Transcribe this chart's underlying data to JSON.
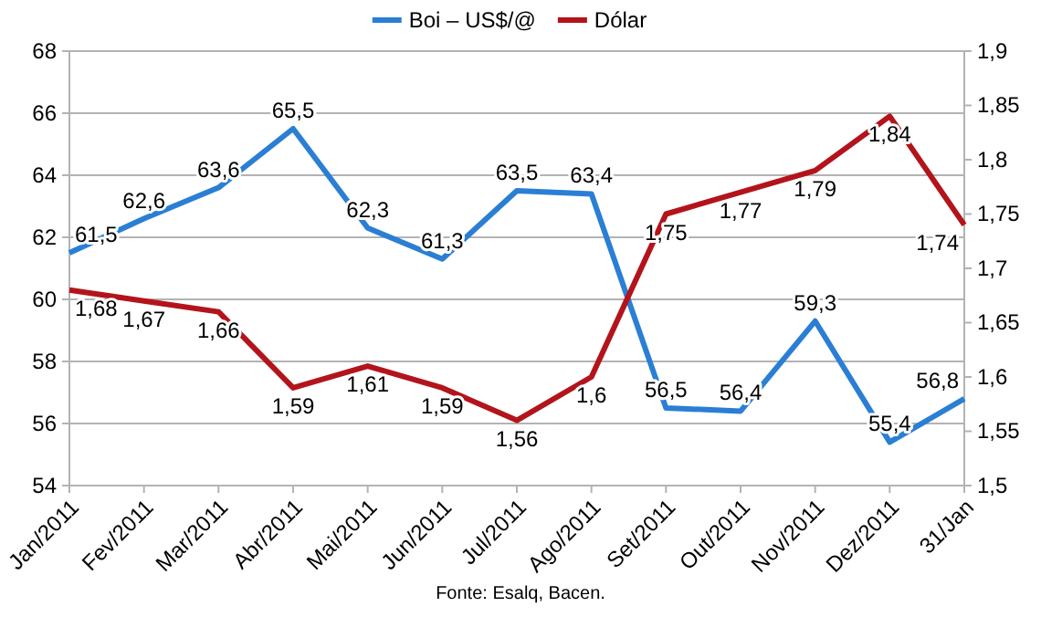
{
  "chart_data": {
    "type": "line",
    "categories": [
      "Jan/2011",
      "Fev/2011",
      "Mar/2011",
      "Abr/2011",
      "Mai/2011",
      "Jun/2011",
      "Jul/2011",
      "Ago/2011",
      "Set/2011",
      "Out/2011",
      "Nov/2011",
      "Dez/2011",
      "31/Jan"
    ],
    "series": [
      {
        "name": "Boi – US$/@",
        "color": "#2a7fd4",
        "values": [
          61.5,
          62.6,
          63.6,
          65.5,
          62.3,
          61.3,
          63.5,
          63.4,
          56.5,
          56.4,
          59.3,
          55.4,
          56.8
        ],
        "value_labels": [
          "61,5",
          "62,6",
          "63,6",
          "65,5",
          "62,3",
          "61,3",
          "63,5",
          "63,4",
          "56,5",
          "56,4",
          "59,3",
          "55,4",
          "56,8"
        ]
      },
      {
        "name": "Dólar",
        "color": "#b3141c",
        "axis": "y2",
        "values": [
          1.68,
          1.67,
          1.66,
          1.59,
          1.61,
          1.59,
          1.56,
          1.6,
          1.75,
          1.77,
          1.79,
          1.84,
          1.74
        ],
        "value_labels": [
          "1,68",
          "1,67",
          "1,66",
          "1,59",
          "1,61",
          "1,59",
          "1,56",
          "1,6",
          "1,75",
          "1,77",
          "1,79",
          "1,84",
          "1,74"
        ]
      }
    ],
    "ylim": [
      54,
      68
    ],
    "yticks": [
      54,
      56,
      58,
      60,
      62,
      64,
      66,
      68
    ],
    "y2lim": [
      1.5,
      1.9
    ],
    "y2ticks": [
      {
        "value": 1.5,
        "label": "1,5"
      },
      {
        "value": 1.55,
        "label": "1,55"
      },
      {
        "value": 1.6,
        "label": "1,6"
      },
      {
        "value": 1.65,
        "label": "1,65"
      },
      {
        "value": 1.7,
        "label": "1,7"
      },
      {
        "value": 1.75,
        "label": "1,75"
      },
      {
        "value": 1.8,
        "label": "1,8"
      },
      {
        "value": 1.85,
        "label": "1,85"
      },
      {
        "value": 1.9,
        "label": "1,9"
      }
    ],
    "grid": "y",
    "legend": "top",
    "marker": "none",
    "line_style": "solid",
    "annotations": [
      "Fonte: Esalq, Bacen."
    ]
  }
}
